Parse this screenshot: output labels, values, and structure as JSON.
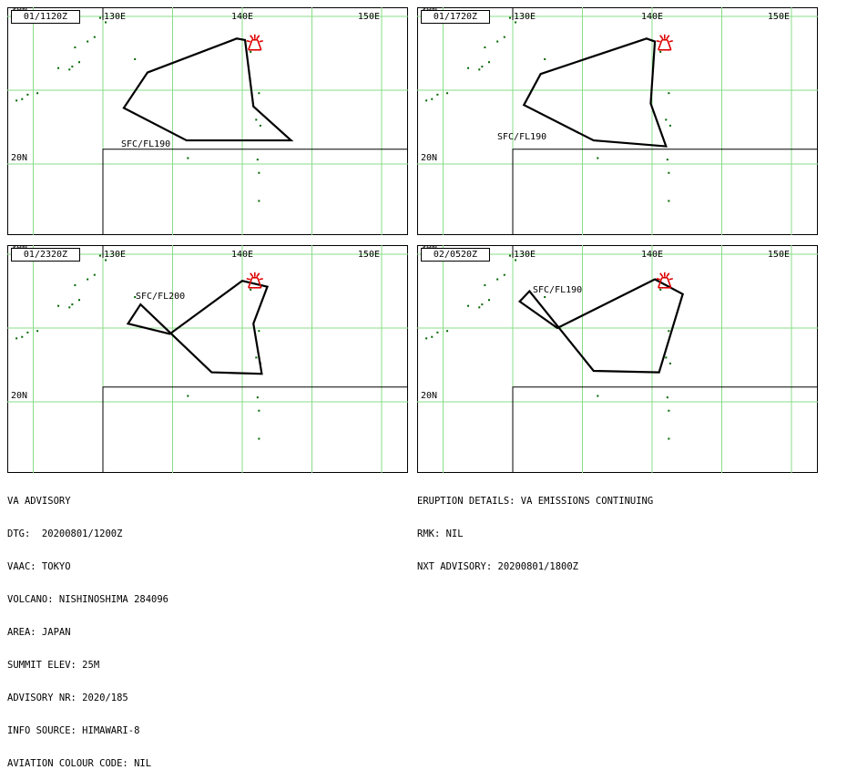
{
  "panels": [
    {
      "time": "01/1120Z",
      "fl": "SFC/FL190",
      "polygon": [
        [
          139.6,
          28.5
        ],
        [
          133.2,
          26.2
        ],
        [
          131.5,
          23.8
        ],
        [
          136.0,
          21.6
        ],
        [
          143.5,
          21.6
        ],
        [
          140.8,
          23.9
        ],
        [
          140.2,
          28.4
        ]
      ]
    },
    {
      "time": "01/1720Z",
      "fl": "SFC/FL190",
      "polygon": [
        [
          139.6,
          28.5
        ],
        [
          132.0,
          26.1
        ],
        [
          130.8,
          24.0
        ],
        [
          135.8,
          21.6
        ],
        [
          141.0,
          21.2
        ],
        [
          139.9,
          24.1
        ],
        [
          140.2,
          28.3
        ]
      ]
    },
    {
      "time": "01/2320Z",
      "fl": "SFC/FL200",
      "polygon": [
        [
          140.0,
          28.2
        ],
        [
          134.8,
          24.6
        ],
        [
          131.8,
          25.3
        ],
        [
          132.7,
          26.6
        ],
        [
          137.8,
          22.0
        ],
        [
          141.4,
          21.9
        ],
        [
          140.8,
          25.3
        ],
        [
          141.8,
          27.8
        ]
      ]
    },
    {
      "time": "02/0520Z",
      "fl": "SFC/FL190",
      "polygon": [
        [
          140.2,
          28.3
        ],
        [
          133.2,
          25.0
        ],
        [
          130.5,
          26.8
        ],
        [
          131.2,
          27.5
        ],
        [
          135.8,
          22.1
        ],
        [
          140.5,
          22.0
        ],
        [
          142.2,
          27.3
        ]
      ]
    }
  ],
  "map_labels": {
    "lon_130": "130E",
    "lon_140": "140E",
    "lon_150": "150E",
    "lat_20": "20N",
    "lat_30": "30N"
  },
  "advisory_left": [
    "VA ADVISORY",
    "DTG:  20200801/1200Z",
    "VAAC: TOKYO",
    "VOLCANO: NISHINOSHIMA 284096",
    "AREA: JAPAN",
    "SUMMIT ELEV: 25M",
    "ADVISORY NR: 2020/185",
    "INFO SOURCE: HIMAWARI-8",
    "AVIATION COLOUR CODE: NIL"
  ],
  "advisory_right": [
    "ERUPTION DETAILS: VA EMISSIONS CONTINUING",
    "RMK: NIL",
    "NXT ADVISORY: 20200801/1800Z"
  ],
  "colors": {
    "grid": "#88dd88",
    "coast": "#006600",
    "volcano": "#dd0000",
    "ash": "#000000"
  }
}
